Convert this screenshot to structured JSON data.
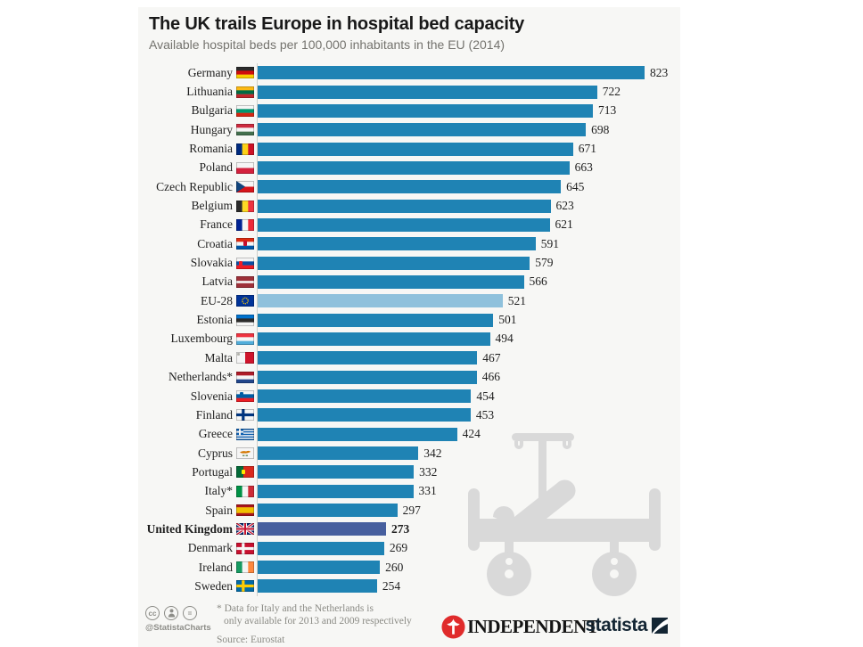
{
  "chart_data": {
    "type": "bar",
    "orientation": "horizontal",
    "title": "The UK trails Europe in hospital bed capacity",
    "subtitle": "Available hospital beds per 100,000 inhabitants in the EU (2014)",
    "xlim": [
      0,
      823
    ],
    "grid": false,
    "legend": "none",
    "rows": [
      {
        "label": "Germany",
        "value": 823,
        "flag": {
          "type": "h",
          "colors": [
            "#2b2b2b",
            "#d00c0c",
            "#f8ce00"
          ]
        }
      },
      {
        "label": "Lithuania",
        "value": 722,
        "flag": {
          "type": "h",
          "colors": [
            "#fdb913",
            "#006a44",
            "#c1272d"
          ]
        }
      },
      {
        "label": "Bulgaria",
        "value": 713,
        "flag": {
          "type": "h",
          "colors": [
            "#f5f5f5",
            "#00966e",
            "#d62612"
          ]
        }
      },
      {
        "label": "Hungary",
        "value": 698,
        "flag": {
          "type": "h",
          "colors": [
            "#cd2a3e",
            "#f5f5f5",
            "#436f4d"
          ]
        }
      },
      {
        "label": "Romania",
        "value": 671,
        "flag": {
          "type": "v",
          "colors": [
            "#002b7f",
            "#fcd116",
            "#ce1126"
          ]
        }
      },
      {
        "label": "Poland",
        "value": 663,
        "flag": {
          "type": "h",
          "colors": [
            "#f5f5f5",
            "#d4213d"
          ]
        }
      },
      {
        "label": "Czech Republic",
        "value": 645,
        "flag": {
          "type": "czech"
        }
      },
      {
        "label": "Belgium",
        "value": 623,
        "flag": {
          "type": "v",
          "colors": [
            "#2b2b2b",
            "#fdda24",
            "#ef3340"
          ]
        }
      },
      {
        "label": "France",
        "value": 621,
        "flag": {
          "type": "v",
          "colors": [
            "#002395",
            "#f5f5f5",
            "#ed2939"
          ]
        }
      },
      {
        "label": "Croatia",
        "value": 591,
        "flag": {
          "type": "h",
          "colors": [
            "#de2910",
            "#f5f5f5",
            "#0057a8"
          ],
          "emblem": {
            "x": 8,
            "y": 3,
            "w": 4,
            "h": 6,
            "color": "#c8102e"
          }
        }
      },
      {
        "label": "Slovakia",
        "value": 579,
        "flag": {
          "type": "h",
          "colors": [
            "#f5f5f5",
            "#0b4ea2",
            "#ee1c25"
          ],
          "emblem": {
            "x": 3,
            "y": 4,
            "w": 4,
            "h": 6,
            "color": "#ee1c25"
          }
        }
      },
      {
        "label": "Latvia",
        "value": 566,
        "flag": {
          "type": "h",
          "colors": [
            "#9e3039",
            "#f5f5f5",
            "#9e3039"
          ],
          "weights": [
            2,
            1,
            2
          ]
        }
      },
      {
        "label": "EU-28",
        "value": 521,
        "bar": "eu",
        "flag": {
          "type": "eu"
        }
      },
      {
        "label": "Estonia",
        "value": 501,
        "flag": {
          "type": "h",
          "colors": [
            "#0072ce",
            "#2b2b2b",
            "#f5f5f5"
          ]
        }
      },
      {
        "label": "Luxembourg",
        "value": 494,
        "flag": {
          "type": "h",
          "colors": [
            "#ef3340",
            "#f5f5f5",
            "#51adda"
          ]
        }
      },
      {
        "label": "Malta",
        "value": 467,
        "flag": {
          "type": "v",
          "colors": [
            "#f5f5f5",
            "#cf142b"
          ],
          "emblem": {
            "x": 1,
            "y": 1,
            "w": 3,
            "h": 3,
            "color": "#b5b5ae"
          }
        }
      },
      {
        "label": "Netherlands*",
        "value": 466,
        "flag": {
          "type": "h",
          "colors": [
            "#ae1c28",
            "#f5f5f5",
            "#21468b"
          ]
        }
      },
      {
        "label": "Slovenia",
        "value": 454,
        "flag": {
          "type": "h",
          "colors": [
            "#f5f5f5",
            "#005da4",
            "#ed1c24"
          ],
          "emblem": {
            "x": 4,
            "y": 2,
            "w": 4,
            "h": 5,
            "color": "#005da4"
          }
        }
      },
      {
        "label": "Finland",
        "value": 453,
        "flag": {
          "type": "nordic",
          "bg": "#f5f5f5",
          "cross": "#003580"
        }
      },
      {
        "label": "Greece",
        "value": 424,
        "flag": {
          "type": "greece"
        }
      },
      {
        "label": "Cyprus",
        "value": 342,
        "flag": {
          "type": "cyprus"
        }
      },
      {
        "label": "Portugal",
        "value": 332,
        "flag": {
          "type": "v",
          "colors": [
            "#046a38",
            "#da291c"
          ],
          "weights": [
            2,
            3
          ],
          "emblem": {
            "x": 6,
            "y": 4,
            "w": 4,
            "h": 5,
            "color": "#ffe900"
          }
        }
      },
      {
        "label": "Italy*",
        "value": 331,
        "flag": {
          "type": "v",
          "colors": [
            "#009246",
            "#f5f5f5",
            "#ce2b37"
          ]
        }
      },
      {
        "label": "Spain",
        "value": 297,
        "flag": {
          "type": "h",
          "colors": [
            "#aa151b",
            "#f1bf00",
            "#aa151b"
          ],
          "weights": [
            1,
            2,
            1
          ]
        }
      },
      {
        "label": "United Kingdom",
        "value": 273,
        "bar": "uk",
        "bold": true,
        "flag": {
          "type": "uk"
        }
      },
      {
        "label": "Denmark",
        "value": 269,
        "flag": {
          "type": "nordic",
          "bg": "#c8102e",
          "cross": "#f5f5f5"
        }
      },
      {
        "label": "Ireland",
        "value": 260,
        "flag": {
          "type": "v",
          "colors": [
            "#169b62",
            "#f5f5f5",
            "#ff883e"
          ]
        }
      },
      {
        "label": "Sweden",
        "value": 254,
        "flag": {
          "type": "nordic",
          "bg": "#006aa7",
          "cross": "#fecc02"
        }
      }
    ]
  },
  "colors": {
    "bar_default": "#1f83b4",
    "bar_eu": "#8fc1dc",
    "bar_uk": "#475f9e",
    "card_bg": "#f7f7f5",
    "title_text": "#191919",
    "subtitle_text": "#74736e",
    "footnote_text": "#8b8b85",
    "independent_red": "#e02b2b",
    "statista_navy": "#132533",
    "bed_icon_gray": "#d9d9d9"
  },
  "footer": {
    "cc_label": "cc",
    "nd_label": "=",
    "handle": "@StatistaCharts",
    "footnote_line1": "* Data for Italy and the Netherlands is",
    "footnote_line2": "only available for 2013 and 2009 respectively",
    "source": "Source: Eurostat",
    "independent_label": "INDEPENDENT",
    "statista_label": "statista"
  }
}
